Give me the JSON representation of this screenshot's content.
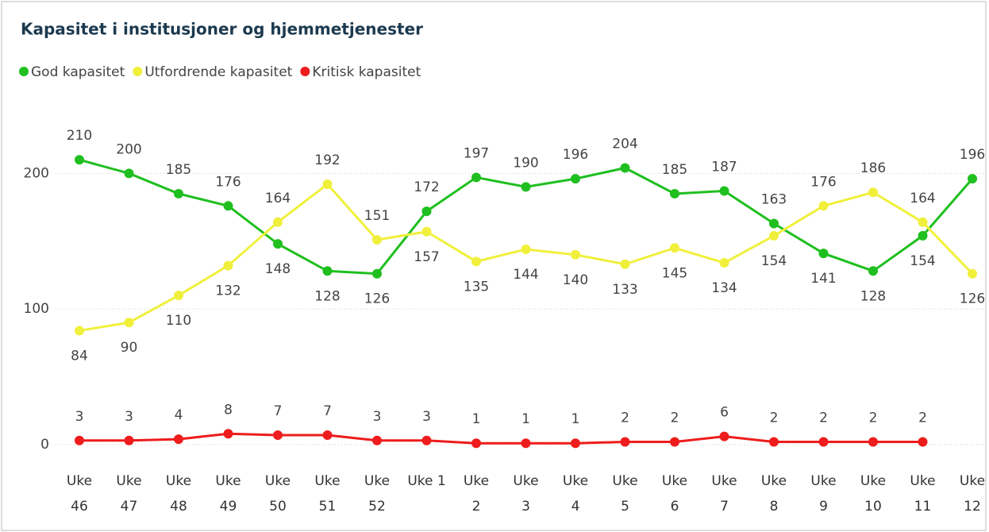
{
  "chart_data": {
    "type": "line",
    "title": "Kapasitet i institusjoner og hjemmetjenester",
    "categories": [
      "Uke 46",
      "Uke 47",
      "Uke 48",
      "Uke 49",
      "Uke 50",
      "Uke 51",
      "Uke 52",
      "Uke 1",
      "Uke 2",
      "Uke 3",
      "Uke 4",
      "Uke 5",
      "Uke 6",
      "Uke 7",
      "Uke 8",
      "Uke 9",
      "Uke 10",
      "Uke 11",
      "Uke 12"
    ],
    "series": [
      {
        "name": "God kapasitet",
        "color": "#1fbf1f",
        "values": [
          210,
          200,
          185,
          176,
          148,
          128,
          126,
          172,
          197,
          190,
          196,
          204,
          185,
          187,
          163,
          141,
          128,
          154,
          196
        ]
      },
      {
        "name": "Utfordrende kapasitet",
        "color": "#f0f03c",
        "values": [
          84,
          90,
          110,
          132,
          164,
          192,
          151,
          157,
          135,
          144,
          140,
          133,
          145,
          134,
          154,
          176,
          186,
          164,
          126
        ]
      },
      {
        "name": "Kritisk kapasitet",
        "color": "#ee1c1c",
        "values": [
          3,
          3,
          4,
          8,
          7,
          7,
          3,
          3,
          1,
          1,
          1,
          2,
          2,
          6,
          2,
          2,
          2,
          2,
          null
        ]
      }
    ],
    "ylim": [
      -10,
      240
    ],
    "yticks": [
      0,
      100,
      200
    ],
    "grid": true,
    "legend": "top"
  }
}
